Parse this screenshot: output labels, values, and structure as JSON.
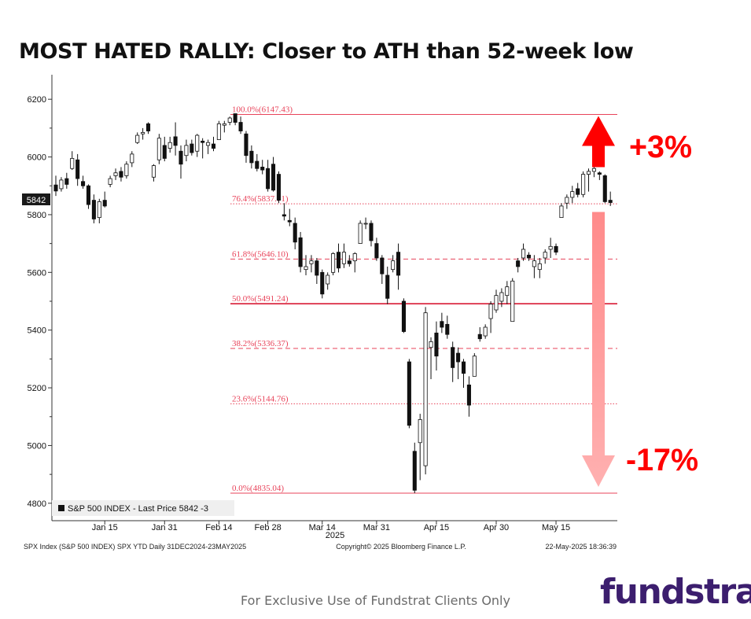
{
  "title": "MOST HATED RALLY: Closer to ATH than 52-week low",
  "footer": "For Exclusive Use of Fundstrat Clients Only",
  "logo": "fundstrat",
  "chart_data": {
    "type": "candlestick",
    "series_name": "S&P 500 INDEX - Last Price 5842 -3",
    "last_price_tag": "5842",
    "y_ticks": [
      4800,
      5000,
      5200,
      5400,
      5600,
      5800,
      6000,
      6200
    ],
    "ylim": [
      4745,
      6285
    ],
    "x_ticks": [
      {
        "label": "Jan 15",
        "i": 9
      },
      {
        "label": "Jan 31",
        "i": 20
      },
      {
        "label": "Feb 14",
        "i": 30
      },
      {
        "label": "Feb 28",
        "i": 39
      },
      {
        "label": "Mar 14",
        "i": 49
      },
      {
        "label": "Mar 31",
        "i": 59
      },
      {
        "label": "Apr 15",
        "i": 70
      },
      {
        "label": "Apr 30",
        "i": 81
      },
      {
        "label": "May 15",
        "i": 92
      }
    ],
    "year_label": "2025",
    "source_left": "SPX Index (S&P 500 INDEX) SPX YTD  Daily 31DEC2024-23MAY2025",
    "source_center": "Copyright© 2025 Bloomberg Finance L.P.",
    "source_right": "22-May-2025 18:36:39",
    "fib_levels": [
      {
        "label": "100.0%(6147.43)",
        "value": 6147.43,
        "style": "solid"
      },
      {
        "label": "76.4%(5837.71)",
        "value": 5837.71,
        "style": "dotted"
      },
      {
        "label": "61.8%(5646.10)",
        "value": 5646.1,
        "style": "dashed"
      },
      {
        "label": "50.0%(5491.24)",
        "value": 5491.24,
        "style": "solid-bold"
      },
      {
        "label": "38.2%(5336.37)",
        "value": 5336.37,
        "style": "dashed"
      },
      {
        "label": "23.6%(5144.76)",
        "value": 5144.76,
        "style": "dotted"
      },
      {
        "label": "0.0%(4835.04)",
        "value": 4835.04,
        "style": "solid"
      }
    ],
    "annotations": [
      {
        "text": "+3%",
        "direction": "up"
      },
      {
        "text": "-17%",
        "direction": "down"
      }
    ],
    "ohlc": [
      [
        5903,
        5935,
        5865,
        5882
      ],
      [
        5890,
        5930,
        5880,
        5920
      ],
      [
        5925,
        5945,
        5890,
        5905
      ],
      [
        5960,
        6020,
        5955,
        5995
      ],
      [
        5990,
        6010,
        5900,
        5925
      ],
      [
        5915,
        5935,
        5890,
        5900
      ],
      [
        5900,
        5905,
        5820,
        5835
      ],
      [
        5850,
        5870,
        5770,
        5785
      ],
      [
        5790,
        5855,
        5770,
        5845
      ],
      [
        5850,
        5880,
        5825,
        5830
      ],
      [
        5905,
        5935,
        5895,
        5925
      ],
      [
        5935,
        5960,
        5920,
        5945
      ],
      [
        5950,
        5965,
        5915,
        5930
      ],
      [
        5935,
        5985,
        5925,
        5975
      ],
      [
        5980,
        6020,
        5965,
        6010
      ],
      [
        6050,
        6085,
        6045,
        6075
      ],
      [
        6080,
        6100,
        6060,
        6085
      ],
      [
        6115,
        6120,
        6080,
        6090
      ],
      [
        5930,
        5975,
        5915,
        5970
      ],
      [
        5990,
        6080,
        5975,
        6065
      ],
      [
        6040,
        6070,
        5985,
        5995
      ],
      [
        6030,
        6070,
        6015,
        6050
      ],
      [
        6070,
        6120,
        6005,
        6040
      ],
      [
        6020,
        6040,
        5925,
        5975
      ],
      [
        6005,
        6060,
        5985,
        6040
      ],
      [
        6045,
        6060,
        6005,
        6015
      ],
      [
        6020,
        6080,
        6000,
        6075
      ],
      [
        6055,
        6065,
        5995,
        6050
      ],
      [
        6040,
        6060,
        6010,
        6050
      ],
      [
        6045,
        6070,
        6020,
        6030
      ],
      [
        6060,
        6125,
        6060,
        6115
      ],
      [
        6110,
        6125,
        6085,
        6115
      ],
      [
        6120,
        6140,
        6110,
        6135
      ],
      [
        6150,
        6150,
        6110,
        6120
      ],
      [
        6120,
        6140,
        6080,
        6090
      ],
      [
        6080,
        6090,
        5980,
        6005
      ],
      [
        6020,
        6040,
        5960,
        5980
      ],
      [
        5985,
        6010,
        5950,
        5960
      ],
      [
        5965,
        5990,
        5940,
        5955
      ],
      [
        5960,
        5990,
        5880,
        5890
      ],
      [
        5975,
        6000,
        5880,
        5885
      ],
      [
        5940,
        5950,
        5840,
        5850
      ],
      [
        5800,
        5840,
        5780,
        5795
      ],
      [
        5780,
        5820,
        5760,
        5775
      ],
      [
        5770,
        5790,
        5680,
        5705
      ],
      [
        5720,
        5740,
        5600,
        5620
      ],
      [
        5610,
        5660,
        5590,
        5620
      ],
      [
        5630,
        5660,
        5600,
        5640
      ],
      [
        5640,
        5650,
        5560,
        5590
      ],
      [
        5600,
        5610,
        5510,
        5525
      ],
      [
        5560,
        5600,
        5540,
        5590
      ],
      [
        5600,
        5670,
        5590,
        5665
      ],
      [
        5670,
        5700,
        5600,
        5615
      ],
      [
        5630,
        5700,
        5615,
        5670
      ],
      [
        5640,
        5660,
        5620,
        5630
      ],
      [
        5640,
        5670,
        5600,
        5665
      ],
      [
        5700,
        5780,
        5700,
        5770
      ],
      [
        5770,
        5790,
        5750,
        5770
      ],
      [
        5770,
        5780,
        5690,
        5710
      ],
      [
        5700,
        5720,
        5640,
        5650
      ],
      [
        5650,
        5660,
        5560,
        5595
      ],
      [
        5590,
        5620,
        5490,
        5510
      ],
      [
        5610,
        5660,
        5600,
        5640
      ],
      [
        5670,
        5700,
        5540,
        5590
      ],
      [
        5500,
        5510,
        5390,
        5395
      ],
      [
        5290,
        5300,
        5060,
        5070
      ],
      [
        4980,
        5010,
        4835,
        4845
      ],
      [
        5010,
        5110,
        4880,
        5090
      ],
      [
        4930,
        5480,
        4900,
        5460
      ],
      [
        5340,
        5375,
        5230,
        5360
      ],
      [
        5390,
        5430,
        5260,
        5310
      ],
      [
        5430,
        5460,
        5390,
        5410
      ],
      [
        5420,
        5450,
        5370,
        5385
      ],
      [
        5340,
        5360,
        5220,
        5270
      ],
      [
        5320,
        5340,
        5230,
        5290
      ],
      [
        5290,
        5300,
        5200,
        5250
      ],
      [
        5210,
        5240,
        5100,
        5140
      ],
      [
        5240,
        5320,
        5240,
        5310
      ],
      [
        5385,
        5410,
        5360,
        5370
      ],
      [
        5380,
        5420,
        5370,
        5410
      ],
      [
        5440,
        5500,
        5390,
        5490
      ],
      [
        5470,
        5540,
        5460,
        5520
      ],
      [
        5500,
        5545,
        5480,
        5530
      ],
      [
        5520,
        5570,
        5490,
        5550
      ],
      [
        5430,
        5580,
        5430,
        5570
      ],
      [
        5640,
        5650,
        5600,
        5620
      ],
      [
        5650,
        5700,
        5640,
        5680
      ],
      [
        5660,
        5670,
        5640,
        5650
      ],
      [
        5620,
        5660,
        5580,
        5640
      ],
      [
        5610,
        5650,
        5580,
        5630
      ],
      [
        5650,
        5680,
        5630,
        5670
      ],
      [
        5680,
        5720,
        5650,
        5690
      ],
      [
        5690,
        5700,
        5660,
        5670
      ],
      [
        5790,
        5840,
        5790,
        5830
      ],
      [
        5840,
        5870,
        5820,
        5860
      ],
      [
        5860,
        5900,
        5840,
        5880
      ],
      [
        5890,
        5910,
        5860,
        5870
      ],
      [
        5870,
        5950,
        5860,
        5940
      ],
      [
        5940,
        5960,
        5880,
        5950
      ],
      [
        5950,
        5970,
        5930,
        5960
      ],
      [
        5945,
        5950,
        5920,
        5940
      ],
      [
        5935,
        5940,
        5840,
        5845
      ],
      [
        5850,
        5880,
        5830,
        5842
      ]
    ]
  }
}
